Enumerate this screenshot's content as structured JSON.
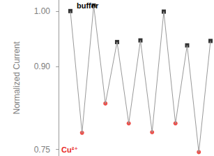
{
  "chart_data": {
    "type": "line",
    "y_label": "Normalized Current",
    "x": [
      1,
      2,
      3,
      4,
      5,
      6,
      7,
      8,
      9,
      10,
      11,
      12,
      13
    ],
    "xlim": [
      -0.25,
      13.3
    ],
    "ylim": [
      0.738,
      1.02
    ],
    "yticks": [
      {
        "value": 0.75,
        "label": "0.75"
      },
      {
        "value": 0.9,
        "label": "0.90"
      },
      {
        "value": 1.0,
        "label": "1.00"
      }
    ],
    "tick_labels": "y",
    "grid": false,
    "color": "#999999",
    "series": [
      {
        "name": "buffer",
        "color": "#000000",
        "marker": "square",
        "values": [
          1.0,
          null,
          1.01,
          null,
          0.944,
          null,
          0.947,
          null,
          0.999,
          null,
          0.938,
          null,
          0.946
        ]
      },
      {
        "name": "Cu²⁺",
        "color": "#e8251f",
        "marker": "circle",
        "values": [
          null,
          0.78,
          null,
          0.833,
          null,
          0.797,
          null,
          0.781,
          null,
          0.797,
          null,
          0.745,
          null
        ]
      }
    ]
  }
}
